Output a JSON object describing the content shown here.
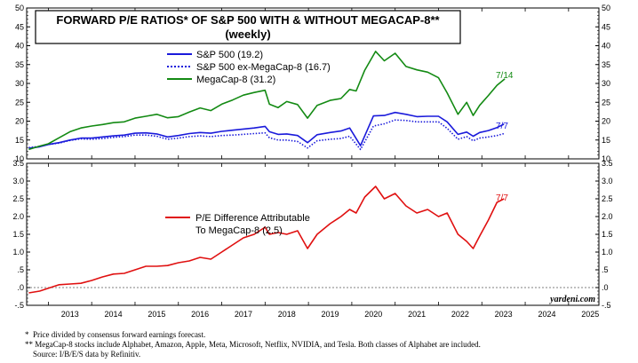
{
  "chart_data": [
    {
      "type": "line",
      "title": "FORWARD P/E RATIOS* OF S&P 500 WITH & WITHOUT MEGACAP-8**",
      "subtitle": "(weekly)",
      "ylim": [
        10,
        50
      ],
      "yticks": [
        10,
        15,
        20,
        25,
        30,
        35,
        40,
        45,
        50
      ],
      "series": [
        {
          "name": "S&P 500 (19.2)",
          "color": "#1a1adb",
          "dash": "solid",
          "end_label": "7/7",
          "x": [
            2012.55,
            2012.8,
            2013.0,
            2013.25,
            2013.5,
            2013.75,
            2014.0,
            2014.25,
            2014.5,
            2014.75,
            2015.0,
            2015.25,
            2015.5,
            2015.75,
            2016.0,
            2016.25,
            2016.5,
            2016.75,
            2017.0,
            2017.25,
            2017.5,
            2017.75,
            2018.0,
            2018.1,
            2018.3,
            2018.5,
            2018.75,
            2018.98,
            2019.2,
            2019.5,
            2019.75,
            2019.95,
            2020.2,
            2020.5,
            2020.75,
            2021.0,
            2021.25,
            2021.5,
            2021.75,
            2022.0,
            2022.2,
            2022.45,
            2022.65,
            2022.8,
            2022.95,
            2023.15,
            2023.35,
            2023.51
          ],
          "y": [
            12.8,
            13.2,
            13.8,
            14.3,
            15.0,
            15.5,
            15.5,
            15.8,
            16.1,
            16.3,
            16.8,
            16.9,
            16.6,
            15.8,
            16.2,
            16.7,
            17.0,
            16.8,
            17.3,
            17.6,
            17.9,
            18.2,
            18.6,
            17.2,
            16.5,
            16.6,
            16.2,
            14.3,
            16.4,
            17.0,
            17.4,
            18.2,
            13.5,
            21.4,
            21.5,
            22.3,
            21.8,
            21.2,
            21.3,
            21.3,
            19.8,
            16.5,
            17.1,
            16.0,
            17.0,
            17.5,
            18.3,
            19.2
          ]
        },
        {
          "name": "S&P 500 ex-MegaCap-8 (16.7)",
          "color": "#1a1adb",
          "dash": "dotted",
          "end_label": "7/7",
          "x": [
            2012.55,
            2012.8,
            2013.0,
            2013.25,
            2013.5,
            2013.75,
            2014.0,
            2014.25,
            2014.5,
            2014.75,
            2015.0,
            2015.25,
            2015.5,
            2015.75,
            2016.0,
            2016.25,
            2016.5,
            2016.75,
            2017.0,
            2017.25,
            2017.5,
            2017.75,
            2018.0,
            2018.1,
            2018.3,
            2018.5,
            2018.75,
            2018.98,
            2019.2,
            2019.5,
            2019.75,
            2019.95,
            2020.2,
            2020.5,
            2020.75,
            2021.0,
            2021.25,
            2021.5,
            2021.75,
            2022.0,
            2022.2,
            2022.45,
            2022.65,
            2022.8,
            2022.95,
            2023.15,
            2023.35,
            2023.51
          ],
          "y": [
            13.0,
            13.3,
            13.8,
            14.2,
            14.9,
            15.3,
            15.2,
            15.4,
            15.7,
            15.9,
            16.3,
            16.3,
            16.0,
            15.2,
            15.5,
            15.9,
            16.1,
            15.9,
            16.2,
            16.3,
            16.5,
            16.7,
            16.9,
            15.6,
            15.0,
            15.0,
            14.6,
            12.9,
            14.8,
            15.2,
            15.4,
            16.0,
            12.5,
            18.7,
            19.3,
            20.3,
            20.2,
            19.8,
            19.8,
            19.8,
            18.1,
            15.2,
            15.9,
            14.8,
            15.5,
            15.8,
            16.2,
            16.7
          ]
        },
        {
          "name": "MegaCap-8 (31.2)",
          "color": "#138a13",
          "dash": "solid",
          "end_label": "7/14",
          "x": [
            2012.55,
            2012.8,
            2013.0,
            2013.25,
            2013.5,
            2013.75,
            2014.0,
            2014.25,
            2014.5,
            2014.75,
            2015.0,
            2015.25,
            2015.5,
            2015.75,
            2016.0,
            2016.25,
            2016.5,
            2016.75,
            2017.0,
            2017.25,
            2017.5,
            2017.75,
            2018.0,
            2018.1,
            2018.3,
            2018.5,
            2018.75,
            2018.98,
            2019.2,
            2019.5,
            2019.75,
            2019.95,
            2020.1,
            2020.3,
            2020.55,
            2020.75,
            2021.0,
            2021.25,
            2021.5,
            2021.75,
            2022.0,
            2022.2,
            2022.45,
            2022.65,
            2022.8,
            2022.95,
            2023.15,
            2023.35,
            2023.53
          ],
          "y": [
            12.5,
            13.4,
            14.0,
            15.6,
            17.2,
            18.2,
            18.7,
            19.1,
            19.6,
            19.8,
            20.8,
            21.3,
            21.8,
            20.9,
            21.2,
            22.4,
            23.5,
            22.8,
            24.5,
            25.6,
            26.9,
            27.6,
            28.2,
            24.5,
            23.6,
            25.2,
            24.4,
            20.8,
            24.2,
            25.5,
            26.0,
            28.4,
            28.0,
            33.5,
            38.5,
            36.0,
            38.0,
            34.5,
            33.6,
            33.0,
            31.5,
            27.5,
            21.8,
            25.0,
            21.5,
            24.2,
            26.8,
            29.5,
            31.2
          ]
        }
      ]
    },
    {
      "type": "line",
      "ylim": [
        -0.5,
        3.5
      ],
      "yticks": [
        -0.5,
        0.0,
        0.5,
        1.0,
        1.5,
        2.0,
        2.5,
        3.0,
        3.5
      ],
      "ytick_labels": [
        "-.5",
        ".0",
        ".5",
        "1.0",
        "1.5",
        "2.0",
        "2.5",
        "3.0",
        "3.5"
      ],
      "series": [
        {
          "name": "P/E Difference Attributable To MegaCap-8 (2.5)",
          "legend_lines": [
            "P/E Difference Attributable",
            "To MegaCap-8 (2.5)"
          ],
          "color": "#e01010",
          "dash": "solid",
          "end_label": "7/7",
          "x": [
            2012.55,
            2012.8,
            2013.0,
            2013.25,
            2013.5,
            2013.75,
            2014.0,
            2014.25,
            2014.5,
            2014.75,
            2015.0,
            2015.25,
            2015.5,
            2015.75,
            2016.0,
            2016.25,
            2016.5,
            2016.75,
            2017.0,
            2017.25,
            2017.5,
            2017.75,
            2018.0,
            2018.1,
            2018.3,
            2018.5,
            2018.75,
            2018.98,
            2019.2,
            2019.5,
            2019.75,
            2019.95,
            2020.1,
            2020.3,
            2020.55,
            2020.75,
            2021.0,
            2021.25,
            2021.5,
            2021.75,
            2022.0,
            2022.2,
            2022.45,
            2022.65,
            2022.8,
            2022.95,
            2023.15,
            2023.35,
            2023.51
          ],
          "y": [
            -0.15,
            -0.1,
            -0.02,
            0.08,
            0.1,
            0.12,
            0.2,
            0.3,
            0.38,
            0.4,
            0.5,
            0.6,
            0.6,
            0.62,
            0.7,
            0.75,
            0.85,
            0.8,
            1.0,
            1.2,
            1.4,
            1.5,
            1.7,
            1.5,
            1.55,
            1.5,
            1.6,
            1.1,
            1.5,
            1.8,
            2.0,
            2.2,
            2.1,
            2.55,
            2.85,
            2.5,
            2.65,
            2.3,
            2.1,
            2.2,
            2.0,
            2.1,
            1.5,
            1.3,
            1.1,
            1.45,
            1.9,
            2.4,
            2.5
          ]
        }
      ]
    }
  ],
  "x_axis": {
    "range": [
      2012.5,
      2025.7
    ],
    "year_labels": [
      "2013",
      "2014",
      "2015",
      "2016",
      "2017",
      "2018",
      "2019",
      "2020",
      "2021",
      "2022",
      "2023",
      "2024",
      "2025"
    ]
  },
  "credit": "yardeni.com",
  "footnotes": [
    {
      "mark": "*",
      "text": "Price divided by consensus forward earnings forecast."
    },
    {
      "mark": "**",
      "text": "MegaCap-8 stocks include Alphabet, Amazon, Apple, Meta, Microsoft, Netflix, NVIDIA, and Tesla. Both classes of Alphabet are included."
    },
    {
      "mark": "",
      "text": "Source: I/B/E/S data by Refinitiv."
    }
  ]
}
